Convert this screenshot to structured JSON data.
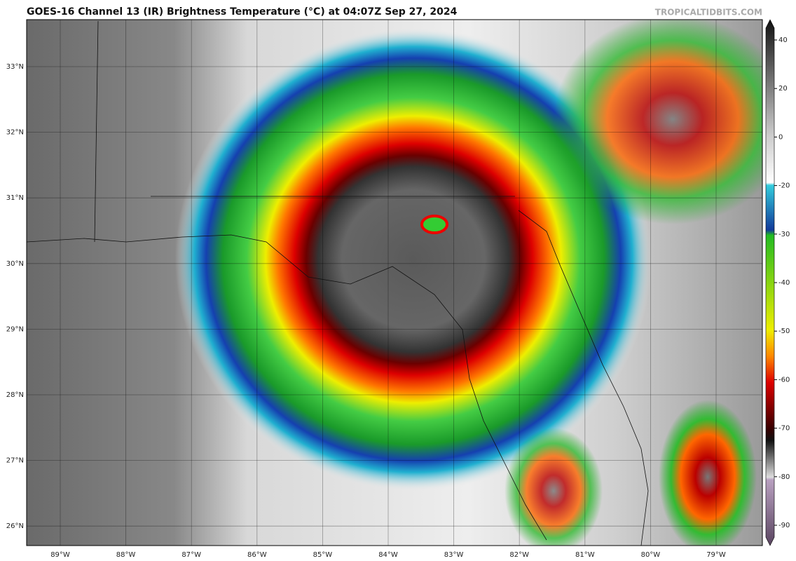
{
  "title": "GOES-16 Channel 13 (IR) Brightness Temperature (°C) at 04:07Z Sep 27, 2024",
  "source": "TROPICALTIDBITS.COM",
  "map": {
    "lat_labels": [
      "33°N",
      "32°N",
      "31°N",
      "30°N",
      "29°N",
      "28°N",
      "27°N",
      "26°N"
    ],
    "lon_labels": [
      "89°W",
      "88°W",
      "87°W",
      "86°W",
      "85°W",
      "84°W",
      "83°W",
      "82°W",
      "81°W",
      "80°W",
      "79°W"
    ]
  },
  "colorbar": {
    "ticks": [
      40,
      20,
      0,
      -20,
      -30,
      -40,
      -50,
      -60,
      -70,
      -80,
      -90
    ]
  }
}
